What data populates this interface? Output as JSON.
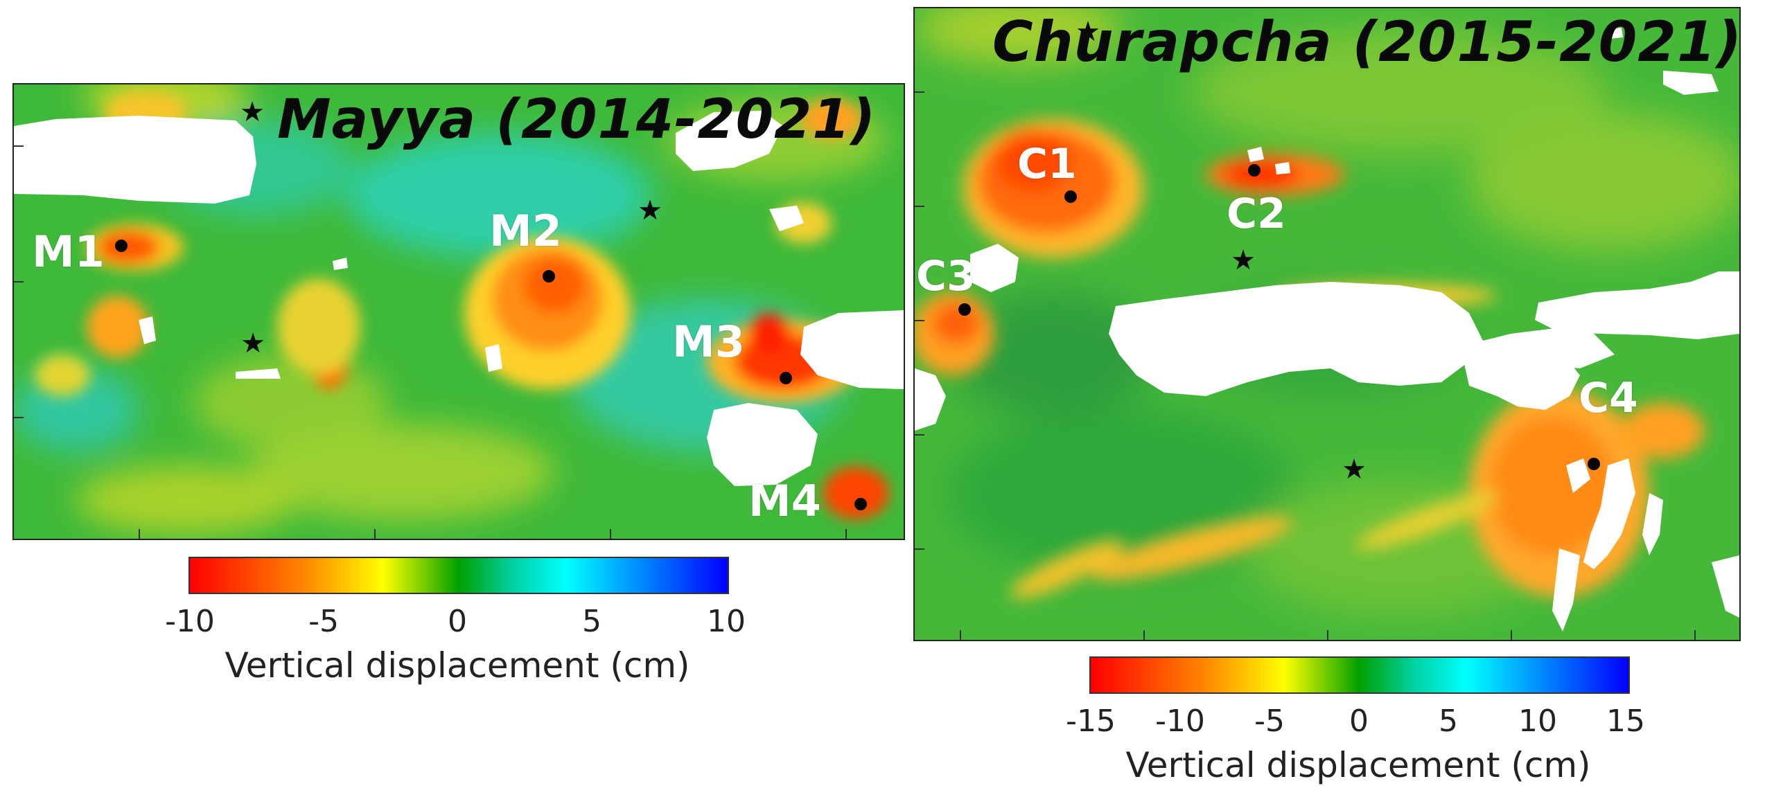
{
  "mayya": {
    "title": "Mayya (2014-2021)",
    "sites": [
      "M1",
      "M2",
      "M3",
      "M4"
    ],
    "colorbar": {
      "label": "Vertical displacement (cm)",
      "ticks": [
        "-10",
        "-5",
        "0",
        "5",
        "10"
      ],
      "range": [
        -10,
        10
      ]
    }
  },
  "churapcha": {
    "title": "Churapcha (2015-2021)",
    "sites": [
      "C1",
      "C2",
      "C3",
      "C4"
    ],
    "colorbar": {
      "label": "Vertical displacement (cm)",
      "ticks": [
        "-15",
        "-10",
        "-5",
        "0",
        "5",
        "10",
        "15"
      ],
      "range": [
        -15,
        15
      ]
    }
  },
  "colormap": [
    "#ff0000",
    "#ff8c00",
    "#ffff00",
    "#00a000",
    "#00ffff",
    "#0080ff",
    "#0000ff"
  ],
  "colors": {
    "background_green": "#3cb83a",
    "subsidence_red": "#ff2a00",
    "subsidence_orange": "#ff9a1a",
    "uplift_cyan": "#2ed6b0",
    "nodata": "#ffffff",
    "marker": "#000000"
  }
}
